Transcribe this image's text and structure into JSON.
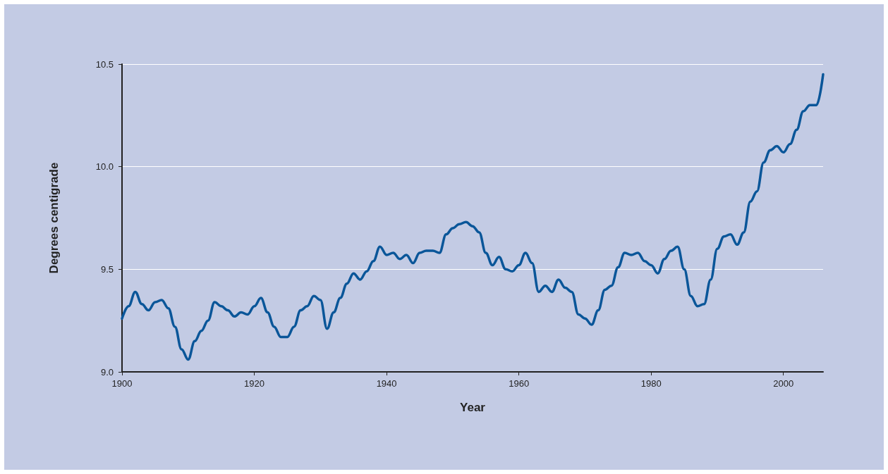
{
  "chart_data": {
    "type": "line",
    "xlabel": "Year",
    "ylabel": "Degrees centigrade",
    "x": [
      1900,
      1901,
      1902,
      1903,
      1904,
      1905,
      1906,
      1907,
      1908,
      1909,
      1910,
      1911,
      1912,
      1913,
      1914,
      1915,
      1916,
      1917,
      1918,
      1919,
      1920,
      1921,
      1922,
      1923,
      1924,
      1925,
      1926,
      1927,
      1928,
      1929,
      1930,
      1931,
      1932,
      1933,
      1934,
      1935,
      1936,
      1937,
      1938,
      1939,
      1940,
      1941,
      1942,
      1943,
      1944,
      1945,
      1946,
      1947,
      1948,
      1949,
      1950,
      1951,
      1952,
      1953,
      1954,
      1955,
      1956,
      1957,
      1958,
      1959,
      1960,
      1961,
      1962,
      1963,
      1964,
      1965,
      1966,
      1967,
      1968,
      1969,
      1970,
      1971,
      1972,
      1973,
      1974,
      1975,
      1976,
      1977,
      1978,
      1979,
      1980,
      1981,
      1982,
      1983,
      1984,
      1985,
      1986,
      1987,
      1988,
      1989,
      1990,
      1991,
      1992,
      1993,
      1994,
      1995,
      1996,
      1997,
      1998,
      1999,
      2000,
      2001,
      2002,
      2003,
      2004,
      2005,
      2006
    ],
    "series": [
      {
        "color": "#0a5699",
        "values": [
          9.26,
          9.32,
          9.39,
          9.33,
          9.3,
          9.34,
          9.35,
          9.31,
          9.22,
          9.11,
          9.06,
          9.15,
          9.2,
          9.25,
          9.34,
          9.32,
          9.3,
          9.27,
          9.29,
          9.28,
          9.32,
          9.36,
          9.29,
          9.22,
          9.17,
          9.17,
          9.22,
          9.3,
          9.32,
          9.37,
          9.35,
          9.21,
          9.29,
          9.36,
          9.43,
          9.48,
          9.45,
          9.49,
          9.54,
          9.61,
          9.57,
          9.58,
          9.55,
          9.57,
          9.53,
          9.58,
          9.59,
          9.59,
          9.58,
          9.67,
          9.7,
          9.72,
          9.73,
          9.71,
          9.68,
          9.58,
          9.52,
          9.56,
          9.5,
          9.49,
          9.52,
          9.58,
          9.53,
          9.39,
          9.42,
          9.39,
          9.45,
          9.41,
          9.39,
          9.28,
          9.26,
          9.23,
          9.3,
          9.4,
          9.42,
          9.51,
          9.58,
          9.57,
          9.58,
          9.54,
          9.52,
          9.48,
          9.55,
          9.59,
          9.61,
          9.5,
          9.37,
          9.32,
          9.33,
          9.45,
          9.6,
          9.66,
          9.67,
          9.62,
          9.68,
          9.83,
          9.88,
          10.02,
          10.08,
          10.1,
          10.07,
          10.11,
          10.18,
          10.27,
          10.3,
          10.3,
          10.45
        ]
      }
    ],
    "xlim": [
      1900,
      2006
    ],
    "xticks": [
      1900,
      1920,
      1940,
      1960,
      1980,
      2000
    ],
    "ylim": [
      9,
      10.5
    ],
    "yticks": [
      {
        "value": 9,
        "label": "9.0"
      },
      9.5,
      {
        "value": 10,
        "label": "10.0"
      },
      10.5
    ],
    "grid": "y",
    "marker": "none",
    "line_style": "solid"
  }
}
